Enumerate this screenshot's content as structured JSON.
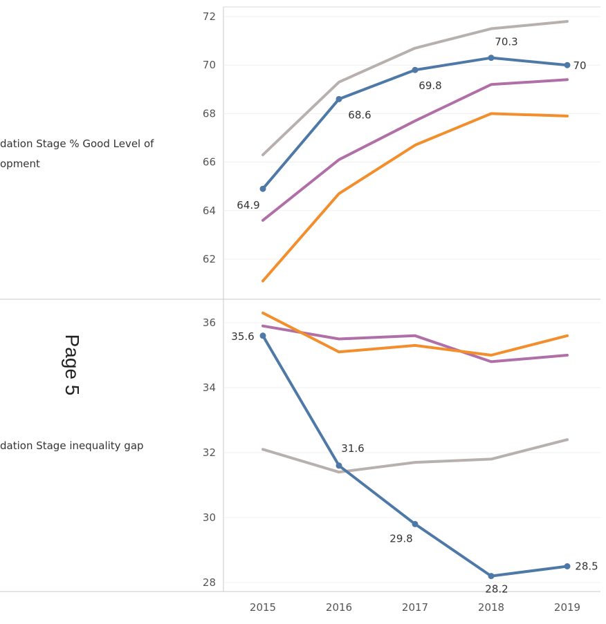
{
  "page_label": "Page 5",
  "chart_data": {
    "type": "line",
    "x": [
      2015,
      2016,
      2017,
      2018,
      2019
    ],
    "xticks": [
      "2015",
      "2016",
      "2017",
      "2018",
      "2019"
    ],
    "grid": true,
    "panels": [
      {
        "ylabel": "dation Stage % Good Level of opment",
        "ylabel_lines": [
          "dation Stage % Good Level of",
          "opment"
        ],
        "ylim": [
          60.5,
          72.3
        ],
        "yticks": [
          62,
          64,
          66,
          68,
          70,
          72
        ],
        "series": [
          {
            "color": "#b8b0ac",
            "values": [
              66.3,
              69.3,
              70.7,
              71.5,
              71.8
            ]
          },
          {
            "color": "#b06fa6",
            "values": [
              63.6,
              66.1,
              67.7,
              69.2,
              69.4
            ]
          },
          {
            "color": "#f28e2b",
            "values": [
              61.1,
              64.7,
              66.7,
              68.0,
              67.9
            ]
          },
          {
            "color": "#4e79a7",
            "values": [
              64.9,
              68.6,
              69.8,
              70.3,
              70.0
            ],
            "markers": true,
            "labels": [
              "64.9",
              "68.6",
              "69.8",
              "70.3",
              "70"
            ]
          }
        ]
      },
      {
        "ylabel": "dation Stage inequality gap",
        "ylabel_lines": [
          "dation Stage inequality gap"
        ],
        "ylim": [
          27.7,
          36.6
        ],
        "yticks": [
          28,
          30,
          32,
          34,
          36
        ],
        "series": [
          {
            "color": "#b8b0ac",
            "values": [
              32.1,
              31.4,
              31.7,
              31.8,
              32.4
            ]
          },
          {
            "color": "#b06fa6",
            "values": [
              35.9,
              35.5,
              35.6,
              34.8,
              35.0
            ]
          },
          {
            "color": "#f28e2b",
            "values": [
              36.3,
              35.1,
              35.3,
              35.0,
              35.6
            ]
          },
          {
            "color": "#4e79a7",
            "values": [
              35.6,
              31.6,
              29.8,
              28.2,
              28.5
            ],
            "markers": true,
            "labels": [
              "35.6",
              "31.6",
              "29.8",
              "28.2",
              "28.5"
            ]
          }
        ]
      }
    ]
  }
}
